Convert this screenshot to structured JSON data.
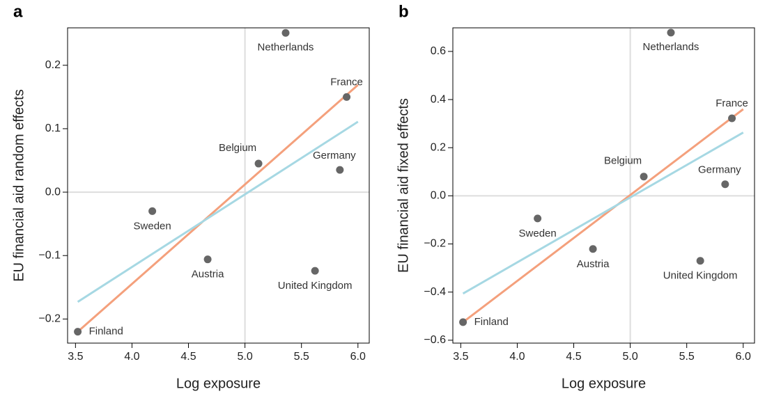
{
  "chart_data": [
    {
      "type": "scatter",
      "panel_label": "a",
      "xlabel": "Log exposure",
      "ylabel": "EU financial aid random effects",
      "xlim": [
        3.43,
        6.1
      ],
      "ylim": [
        -0.238,
        0.259
      ],
      "xticks": [
        3.5,
        {
          "value": 4,
          "label": "4.0"
        },
        4.5,
        {
          "value": 5,
          "label": "5.0"
        },
        5.5,
        {
          "value": 6,
          "label": "6.0"
        }
      ],
      "yticks": [
        {
          "value": -0.2,
          "label": "−0.2"
        },
        {
          "value": -0.1,
          "label": "−0.1"
        },
        {
          "value": 0,
          "label": "0.0"
        },
        0.1,
        0.2
      ],
      "reference_x": 5,
      "reference_y": 0,
      "point_color": "#666666",
      "labels": [
        "Finland",
        "Sweden",
        "Austria",
        "Belgium",
        "Netherlands",
        "France",
        "Germany",
        "United Kingdom"
      ],
      "x": [
        3.52,
        4.18,
        4.67,
        5.12,
        5.36,
        5.9,
        5.84,
        5.62
      ],
      "values": [
        -0.22,
        -0.03,
        -0.106,
        0.045,
        0.251,
        0.15,
        0.035,
        -0.124
      ],
      "fits": [
        {
          "color": "#f4a07c",
          "x": [
            3.52,
            6.0
          ],
          "values": [
            -0.22,
            0.169
          ]
        },
        {
          "color": "#a6d8e3",
          "x": [
            3.52,
            6.0
          ],
          "values": [
            -0.173,
            0.111
          ]
        }
      ]
    },
    {
      "type": "scatter",
      "panel_label": "b",
      "xlabel": "Log exposure",
      "ylabel": "EU financial aid fixed effects",
      "xlim": [
        3.43,
        6.1
      ],
      "ylim": [
        -0.612,
        0.698
      ],
      "xticks": [
        3.5,
        {
          "value": 4,
          "label": "4.0"
        },
        4.5,
        {
          "value": 5,
          "label": "5.0"
        },
        5.5,
        {
          "value": 6,
          "label": "6.0"
        }
      ],
      "yticks": [
        {
          "value": -0.6,
          "label": "−0.6"
        },
        {
          "value": -0.4,
          "label": "−0.4"
        },
        {
          "value": -0.2,
          "label": "−0.2"
        },
        {
          "value": 0,
          "label": "0.0"
        },
        0.2,
        0.4,
        0.6
      ],
      "reference_x": 5,
      "reference_y": 0,
      "point_color": "#666666",
      "labels": [
        "Finland",
        "Sweden",
        "Austria",
        "Belgium",
        "Netherlands",
        "France",
        "Germany",
        "United Kingdom"
      ],
      "x": [
        3.52,
        4.18,
        4.67,
        5.12,
        5.36,
        5.9,
        5.84,
        5.62
      ],
      "values": [
        -0.525,
        -0.094,
        -0.221,
        0.08,
        0.678,
        0.322,
        0.048,
        -0.27
      ],
      "fits": [
        {
          "color": "#f4a07c",
          "x": [
            3.52,
            6.0
          ],
          "values": [
            -0.525,
            0.36
          ]
        },
        {
          "color": "#a6d8e3",
          "x": [
            3.52,
            6.0
          ],
          "values": [
            -0.406,
            0.263
          ]
        }
      ]
    }
  ]
}
